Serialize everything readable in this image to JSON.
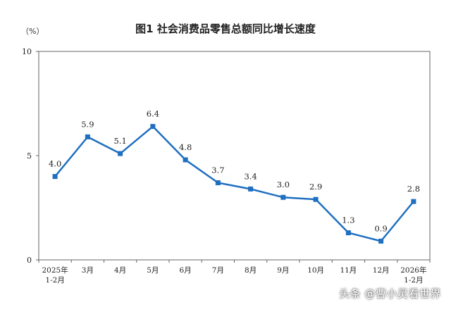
{
  "chart_data": {
    "type": "line",
    "title": "图1  社会消费品零售总额同比增长速度",
    "unit_label": "（%）",
    "categories": [
      [
        "2025年",
        "1-2月"
      ],
      [
        "3月"
      ],
      [
        "4月"
      ],
      [
        "5月"
      ],
      [
        "6月"
      ],
      [
        "7月"
      ],
      [
        "8月"
      ],
      [
        "9月"
      ],
      [
        "10月"
      ],
      [
        "11月"
      ],
      [
        "12月"
      ],
      [
        "2026年",
        "1-2月"
      ]
    ],
    "series": [
      {
        "values": [
          4.0,
          5.9,
          5.1,
          6.4,
          4.8,
          3.7,
          3.4,
          3.0,
          2.9,
          1.3,
          0.9,
          2.8
        ],
        "labels": [
          "4.0",
          "5.9",
          "5.1",
          "6.4",
          "4.8",
          "3.7",
          "3.4",
          "3.0",
          "2.9",
          "1.3",
          "0.9",
          "2.8"
        ],
        "color": "#1f6fc0"
      }
    ],
    "ylim": [
      0,
      10
    ],
    "yticks": [
      "0",
      "5",
      "10"
    ],
    "grid": false
  },
  "watermark": "头条 @曹小灵看世界"
}
